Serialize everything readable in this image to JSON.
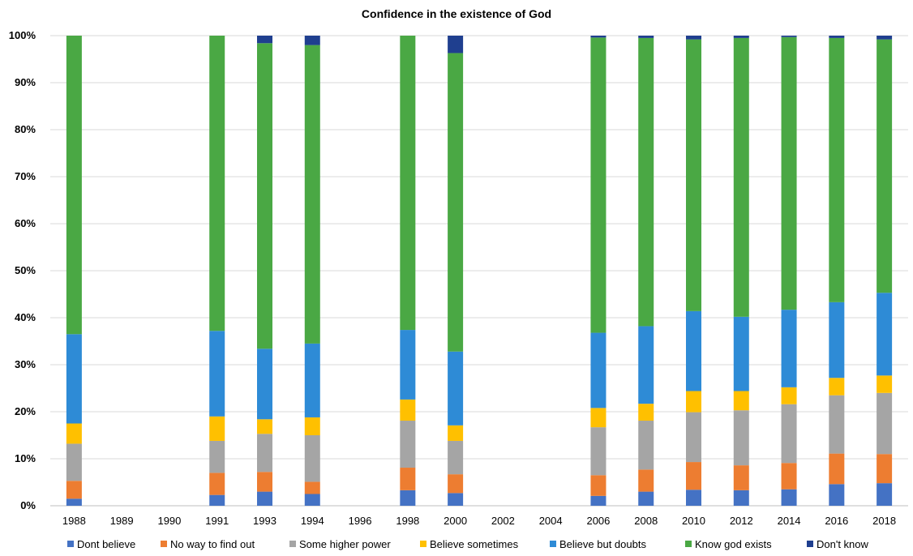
{
  "chart_data": {
    "type": "bar",
    "stacked": true,
    "percent": true,
    "title": "Confidence in the existence of God",
    "xlabel": "",
    "ylabel": "",
    "ylim": [
      0,
      100
    ],
    "grid": true,
    "legend_position": "bottom",
    "yticks": [
      "0%",
      "10%",
      "20%",
      "30%",
      "40%",
      "50%",
      "60%",
      "70%",
      "80%",
      "90%",
      "100%"
    ],
    "categories": [
      "1988",
      "1989",
      "1990",
      "1991",
      "1993",
      "1994",
      "1996",
      "1998",
      "2000",
      "2002",
      "2004",
      "2006",
      "2008",
      "2010",
      "2012",
      "2014",
      "2016",
      "2018"
    ],
    "series": [
      {
        "name": "Dont believe",
        "color": "#4472c4",
        "values": [
          1.5,
          null,
          null,
          2.3,
          3.0,
          2.5,
          null,
          3.3,
          2.7,
          null,
          null,
          2.1,
          3.0,
          3.4,
          3.3,
          3.5,
          4.6,
          4.8
        ]
      },
      {
        "name": "No way to find out",
        "color": "#ed7d31",
        "values": [
          3.8,
          null,
          null,
          4.7,
          4.2,
          2.6,
          null,
          4.8,
          4.0,
          null,
          null,
          4.4,
          4.7,
          5.9,
          5.3,
          5.6,
          6.5,
          6.2
        ]
      },
      {
        "name": "Some higher power",
        "color": "#a5a5a5",
        "values": [
          7.9,
          null,
          null,
          6.8,
          8.1,
          9.9,
          null,
          10.0,
          7.1,
          null,
          null,
          10.2,
          10.4,
          10.6,
          11.7,
          12.5,
          12.4,
          13.0
        ]
      },
      {
        "name": "Believe sometimes",
        "color": "#ffc000",
        "values": [
          4.3,
          null,
          null,
          5.2,
          3.1,
          3.8,
          null,
          4.5,
          3.3,
          null,
          null,
          4.1,
          3.6,
          4.5,
          4.1,
          3.6,
          3.7,
          3.7
        ]
      },
      {
        "name": "Believe but doubts",
        "color": "#2e8bd6",
        "values": [
          19.0,
          null,
          null,
          18.2,
          15.0,
          15.7,
          null,
          14.8,
          15.7,
          null,
          null,
          16.0,
          16.5,
          17.0,
          15.8,
          16.5,
          16.1,
          17.6
        ]
      },
      {
        "name": "Know god exists",
        "color": "#4aa844",
        "values": [
          63.5,
          null,
          null,
          62.8,
          65.0,
          63.5,
          null,
          62.6,
          63.5,
          null,
          null,
          62.8,
          61.3,
          57.8,
          59.3,
          58.0,
          56.2,
          53.9
        ]
      },
      {
        "name": "Don't know",
        "color": "#1f3f8f",
        "values": [
          0,
          null,
          null,
          0,
          1.6,
          2.0,
          null,
          0,
          3.7,
          null,
          null,
          0.4,
          0.5,
          0.8,
          0.5,
          0.3,
          0.5,
          0.8
        ]
      }
    ]
  }
}
